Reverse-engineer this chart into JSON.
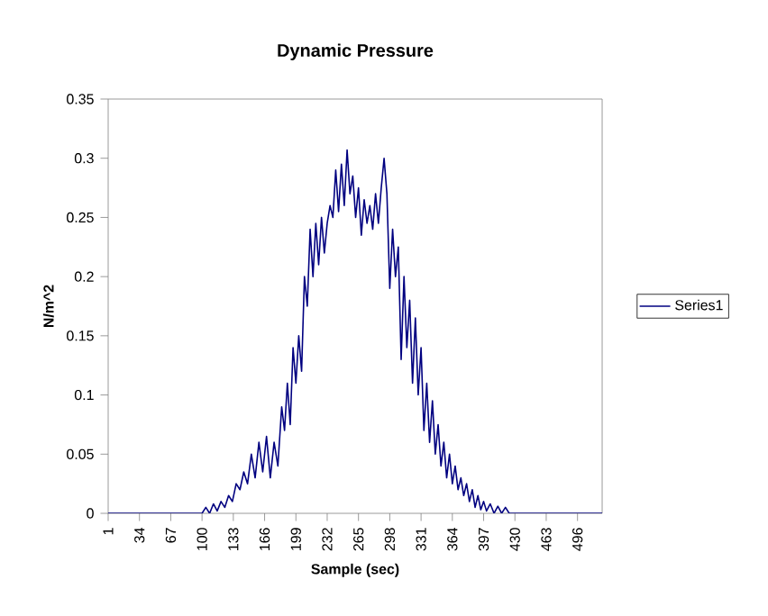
{
  "chart_data": {
    "type": "line",
    "title": "Dynamic Pressure",
    "xlabel": "Sample (sec)",
    "ylabel": "N/m^2",
    "xlim": [
      1,
      522
    ],
    "xticks": [
      1,
      34,
      67,
      100,
      133,
      166,
      199,
      232,
      265,
      298,
      331,
      364,
      397,
      430,
      463,
      496
    ],
    "ylim": [
      0,
      0.35
    ],
    "yticks": [
      0,
      0.05,
      0.1,
      0.15,
      0.2,
      0.25,
      0.3,
      0.35
    ],
    "grid": false,
    "legend": "right",
    "marker": "none",
    "line_style": "solid",
    "series": [
      {
        "name": "Series1",
        "color": "#000080",
        "x": [
          1,
          100,
          104,
          108,
          112,
          116,
          120,
          124,
          128,
          132,
          136,
          140,
          144,
          148,
          152,
          156,
          160,
          164,
          168,
          172,
          176,
          180,
          184,
          187,
          190,
          193,
          196,
          199,
          202,
          205,
          208,
          211,
          214,
          217,
          220,
          223,
          226,
          229,
          232,
          235,
          238,
          241,
          244,
          247,
          250,
          253,
          256,
          259,
          262,
          265,
          268,
          271,
          274,
          277,
          280,
          283,
          286,
          289,
          292,
          295,
          298,
          301,
          304,
          307,
          310,
          313,
          316,
          319,
          322,
          325,
          328,
          331,
          334,
          337,
          340,
          343,
          346,
          349,
          352,
          355,
          358,
          361,
          364,
          367,
          370,
          373,
          376,
          379,
          382,
          385,
          388,
          391,
          394,
          397,
          400,
          404,
          408,
          412,
          416,
          420,
          424,
          522
        ],
        "values": [
          0,
          0,
          0.005,
          0,
          0.008,
          0.002,
          0.01,
          0.005,
          0.015,
          0.01,
          0.025,
          0.02,
          0.035,
          0.025,
          0.05,
          0.03,
          0.06,
          0.035,
          0.065,
          0.03,
          0.06,
          0.04,
          0.09,
          0.07,
          0.11,
          0.075,
          0.14,
          0.11,
          0.15,
          0.12,
          0.2,
          0.175,
          0.24,
          0.2,
          0.245,
          0.21,
          0.25,
          0.22,
          0.245,
          0.26,
          0.25,
          0.29,
          0.255,
          0.295,
          0.26,
          0.307,
          0.27,
          0.285,
          0.25,
          0.275,
          0.235,
          0.265,
          0.245,
          0.26,
          0.24,
          0.27,
          0.245,
          0.275,
          0.3,
          0.27,
          0.19,
          0.24,
          0.2,
          0.225,
          0.13,
          0.2,
          0.14,
          0.18,
          0.11,
          0.165,
          0.1,
          0.14,
          0.07,
          0.11,
          0.06,
          0.095,
          0.05,
          0.075,
          0.04,
          0.06,
          0.03,
          0.05,
          0.025,
          0.04,
          0.02,
          0.03,
          0.015,
          0.025,
          0.01,
          0.02,
          0.005,
          0.015,
          0.003,
          0.01,
          0.002,
          0.008,
          0,
          0.006,
          0,
          0.005,
          0,
          0
        ]
      }
    ]
  }
}
